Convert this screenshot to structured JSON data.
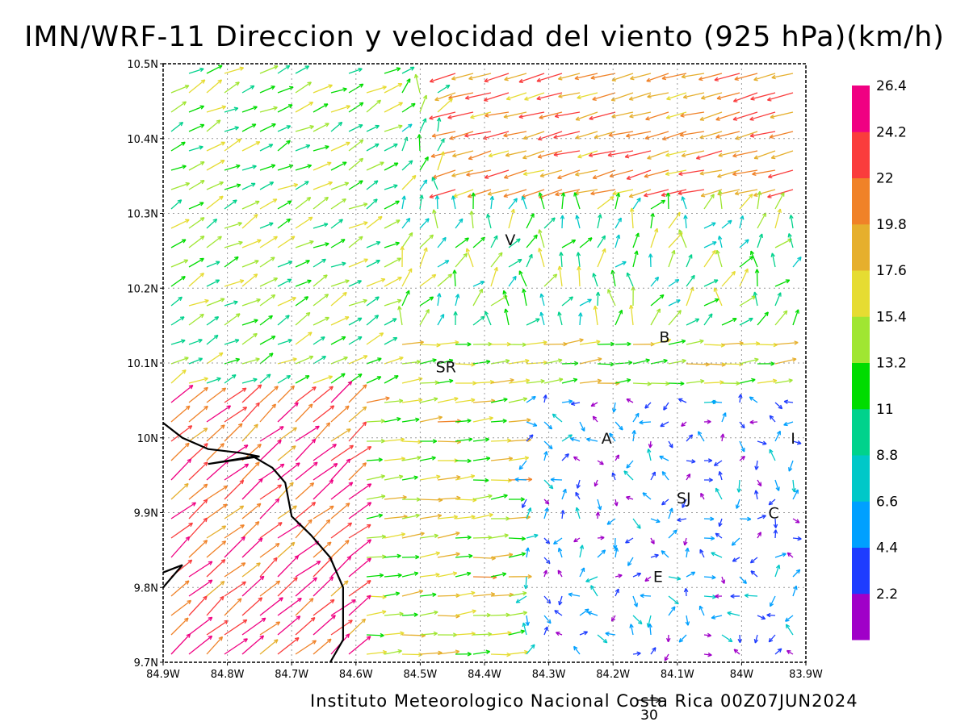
{
  "title": "IMN/WRF-11 Direccion y velocidad del viento (925 hPa)(km/h)",
  "footer": "Instituto Meteorologico Nacional Costa Rica 00Z07JUN2024",
  "reference_vector_label": "30",
  "y_ticks": [
    "10.5N",
    "10.4N",
    "10.3N",
    "10.2N",
    "10.1N",
    "10N",
    "9.9N",
    "9.8N",
    "9.7N"
  ],
  "x_ticks": [
    "84.9W",
    "84.8W",
    "84.7W",
    "84.6W",
    "84.5W",
    "84.4W",
    "84.3W",
    "84.2W",
    "84.1W",
    "84W",
    "83.9W"
  ],
  "colorbar": {
    "labels": [
      "2.2",
      "4.4",
      "6.6",
      "8.8",
      "11",
      "13.2",
      "15.4",
      "17.6",
      "19.8",
      "22",
      "24.2",
      "26.4"
    ],
    "colors": [
      "#a000c8",
      "#1e3cff",
      "#00a0ff",
      "#00c8c8",
      "#00d28c",
      "#00dc00",
      "#a0e632",
      "#e6dc32",
      "#e6af2d",
      "#f08228",
      "#fa3c3c",
      "#f00082"
    ]
  },
  "cities": [
    {
      "name": "V",
      "lon": -84.36,
      "lat": 10.265
    },
    {
      "name": "B",
      "lon": -84.12,
      "lat": 10.135
    },
    {
      "name": "SR",
      "lon": -84.46,
      "lat": 10.095
    },
    {
      "name": "A",
      "lon": -84.21,
      "lat": 10.0
    },
    {
      "name": "I",
      "lon": -83.92,
      "lat": 10.0
    },
    {
      "name": "SJ",
      "lon": -84.09,
      "lat": 9.92
    },
    {
      "name": "C",
      "lon": -83.95,
      "lat": 9.9
    },
    {
      "name": "E",
      "lon": -84.13,
      "lat": 9.815
    }
  ],
  "coastline_lonlat": [
    [
      -84.9,
      10.02
    ],
    [
      -84.87,
      10.0
    ],
    [
      -84.83,
      9.985
    ],
    [
      -84.78,
      9.98
    ],
    [
      -84.75,
      9.975
    ],
    [
      -84.83,
      9.965
    ],
    [
      -84.76,
      9.975
    ],
    [
      -84.73,
      9.96
    ],
    [
      -84.72,
      9.95
    ],
    [
      -84.71,
      9.94
    ],
    [
      -84.7,
      9.895
    ],
    [
      -84.67,
      9.87
    ],
    [
      -84.64,
      9.84
    ],
    [
      -84.62,
      9.8
    ],
    [
      -84.62,
      9.73
    ],
    [
      -84.64,
      9.7
    ]
  ],
  "coastline_spur": [
    [
      -84.9,
      9.82
    ],
    [
      -84.87,
      9.83
    ],
    [
      -84.9,
      9.8
    ]
  ]
}
